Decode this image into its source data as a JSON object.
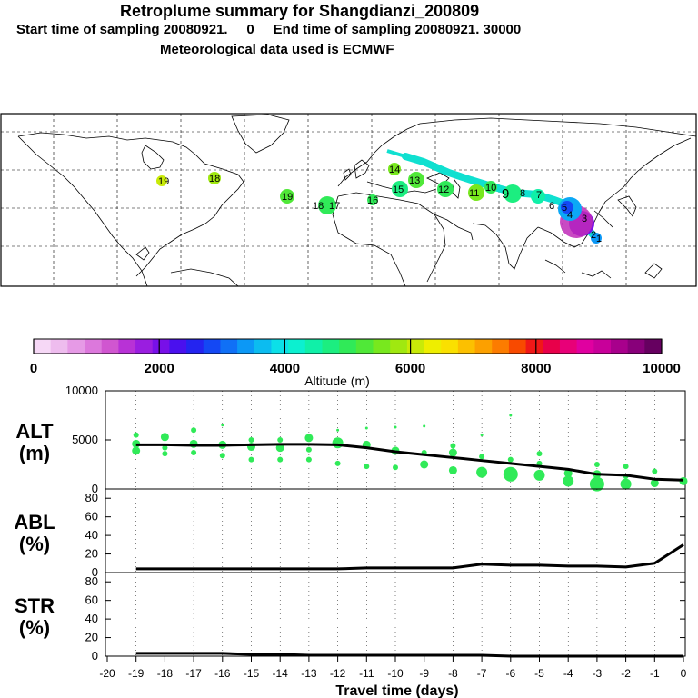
{
  "header": {
    "title": "Retroplume summary for Shangdianzi_200809",
    "subtitle": "Start time of sampling 20080921.     0     End time of sampling 20080921. 30000",
    "meteo": "Meteorological data used is ECMWF"
  },
  "map": {
    "labels": [
      "19",
      "18",
      "19",
      "18",
      "17",
      "16",
      "15",
      "14",
      "13",
      "12",
      "11",
      "10",
      "9",
      "8",
      "7",
      "6",
      "5",
      "4",
      "3",
      "2",
      "1"
    ]
  },
  "colorbar": {
    "ticks": [
      "0",
      "2000",
      "4000",
      "6000",
      "8000",
      "10000"
    ],
    "label": "Altitude  (m)",
    "colors": [
      "#f6d8f6",
      "#eebcee",
      "#e69ae6",
      "#dc78dc",
      "#d056d0",
      "#b832d6",
      "#9a1ee0",
      "#7810e8",
      "#4a10ee",
      "#2424f0",
      "#1448f4",
      "#1070f6",
      "#0c98f6",
      "#0cbcf0",
      "#0ce0e8",
      "#0cf0d0",
      "#10f0a8",
      "#1cee80",
      "#30ea58",
      "#50e838",
      "#78e81e",
      "#a0e810",
      "#c8ea08",
      "#eeee00",
      "#fae000",
      "#fcc000",
      "#fca000",
      "#fc7c00",
      "#f84a00",
      "#f01818",
      "#e8004a",
      "#e80078",
      "#e000a0",
      "#c8009a",
      "#a8008c",
      "#88007a",
      "#660060"
    ]
  },
  "axes": {
    "xlabel": "Travel time (days)",
    "xticks": [
      "-20",
      "-19",
      "-18",
      "-17",
      "-16",
      "-15",
      "-14",
      "-13",
      "-12",
      "-11",
      "-10",
      "-9",
      "-8",
      "-7",
      "-6",
      "-5",
      "-4",
      "-3",
      "-2",
      "-1",
      "0"
    ]
  },
  "chart_data": [
    {
      "type": "line",
      "panel": "ALT",
      "title": "ALT",
      "ylabel": "(m)",
      "ylim": [
        0,
        10000
      ],
      "yticks": [
        "0",
        "5000",
        "10000"
      ],
      "x": [
        -19,
        -18,
        -17,
        -16,
        -15,
        -14,
        -13,
        -12,
        -11,
        -10,
        -9,
        -8,
        -7,
        -6,
        -5,
        -4,
        -3,
        -2,
        -1,
        0
      ],
      "series": [
        {
          "name": "mean altitude",
          "values": [
            4500,
            4500,
            4450,
            4450,
            4500,
            4550,
            4550,
            4500,
            4200,
            3800,
            3500,
            3200,
            2900,
            2600,
            2300,
            2000,
            1500,
            1400,
            1000,
            900
          ]
        }
      ],
      "clusters": [
        {
          "x": -19,
          "y": 5500,
          "s": 1
        },
        {
          "x": -19,
          "y": 4600,
          "s": 2
        },
        {
          "x": -19,
          "y": 3900,
          "s": 2
        },
        {
          "x": -18,
          "y": 5300,
          "s": 2
        },
        {
          "x": -18,
          "y": 4200,
          "s": 1
        },
        {
          "x": -18,
          "y": 3600,
          "s": 1
        },
        {
          "x": -17,
          "y": 6000,
          "s": 1
        },
        {
          "x": -17,
          "y": 4600,
          "s": 2
        },
        {
          "x": -17,
          "y": 3700,
          "s": 1
        },
        {
          "x": -16,
          "y": 6500,
          "s": 0
        },
        {
          "x": -16,
          "y": 4500,
          "s": 2
        },
        {
          "x": -16,
          "y": 3400,
          "s": 1
        },
        {
          "x": -15,
          "y": 5000,
          "s": 1
        },
        {
          "x": -15,
          "y": 4300,
          "s": 2
        },
        {
          "x": -15,
          "y": 3000,
          "s": 1
        },
        {
          "x": -14,
          "y": 5000,
          "s": 1
        },
        {
          "x": -14,
          "y": 4200,
          "s": 2
        },
        {
          "x": -14,
          "y": 3000,
          "s": 1
        },
        {
          "x": -13,
          "y": 5200,
          "s": 2
        },
        {
          "x": -13,
          "y": 4000,
          "s": 1
        },
        {
          "x": -13,
          "y": 3000,
          "s": 1
        },
        {
          "x": -12,
          "y": 6000,
          "s": 0
        },
        {
          "x": -12,
          "y": 4700,
          "s": 3
        },
        {
          "x": -12,
          "y": 2600,
          "s": 1
        },
        {
          "x": -11,
          "y": 6200,
          "s": 0
        },
        {
          "x": -11,
          "y": 4500,
          "s": 2
        },
        {
          "x": -11,
          "y": 2300,
          "s": 1
        },
        {
          "x": -10,
          "y": 6300,
          "s": 0
        },
        {
          "x": -10,
          "y": 3900,
          "s": 2
        },
        {
          "x": -10,
          "y": 2200,
          "s": 1
        },
        {
          "x": -9,
          "y": 6400,
          "s": 0
        },
        {
          "x": -9,
          "y": 3700,
          "s": 1
        },
        {
          "x": -9,
          "y": 2500,
          "s": 2
        },
        {
          "x": -8,
          "y": 4400,
          "s": 1
        },
        {
          "x": -8,
          "y": 3700,
          "s": 2
        },
        {
          "x": -8,
          "y": 1900,
          "s": 2
        },
        {
          "x": -7,
          "y": 5500,
          "s": 0
        },
        {
          "x": -7,
          "y": 3300,
          "s": 1
        },
        {
          "x": -7,
          "y": 1700,
          "s": 3
        },
        {
          "x": -6,
          "y": 7500,
          "s": 0
        },
        {
          "x": -6,
          "y": 3000,
          "s": 1
        },
        {
          "x": -6,
          "y": 1500,
          "s": 4
        },
        {
          "x": -5,
          "y": 3600,
          "s": 1
        },
        {
          "x": -5,
          "y": 2600,
          "s": 1
        },
        {
          "x": -5,
          "y": 1400,
          "s": 3
        },
        {
          "x": -4,
          "y": 1600,
          "s": 2
        },
        {
          "x": -4,
          "y": 800,
          "s": 3
        },
        {
          "x": -3,
          "y": 2500,
          "s": 1
        },
        {
          "x": -3,
          "y": 1500,
          "s": 2
        },
        {
          "x": -3,
          "y": 500,
          "s": 4
        },
        {
          "x": -2,
          "y": 2300,
          "s": 1
        },
        {
          "x": -2,
          "y": 1300,
          "s": 1
        },
        {
          "x": -2,
          "y": 500,
          "s": 3
        },
        {
          "x": -1,
          "y": 1800,
          "s": 1
        },
        {
          "x": -1,
          "y": 600,
          "s": 2
        },
        {
          "x": 0,
          "y": 800,
          "s": 2
        }
      ]
    },
    {
      "type": "line",
      "panel": "ABL",
      "title": "ABL",
      "ylabel": "(%)",
      "ylim": [
        0,
        90
      ],
      "yticks": [
        "0",
        "20",
        "40",
        "60",
        "80"
      ],
      "x": [
        -19,
        -18,
        -17,
        -16,
        -15,
        -14,
        -13,
        -12,
        -11,
        -10,
        -9,
        -8,
        -7,
        -6,
        -5,
        -4,
        -3,
        -2,
        -1,
        0
      ],
      "series": [
        {
          "name": "ABL fraction",
          "values": [
            4,
            4,
            4,
            4,
            4,
            4,
            4,
            4,
            5,
            5,
            5,
            5,
            9,
            8,
            8,
            7,
            7,
            6,
            10,
            30
          ]
        }
      ]
    },
    {
      "type": "line",
      "panel": "STR",
      "title": "STR",
      "ylabel": "(%)",
      "ylim": [
        0,
        90
      ],
      "yticks": [
        "0",
        "20",
        "40",
        "60",
        "80"
      ],
      "x": [
        -19,
        -18,
        -17,
        -16,
        -15,
        -14,
        -13,
        -12,
        -11,
        -10,
        -9,
        -8,
        -7,
        -6,
        -5,
        -4,
        -3,
        -2,
        -1,
        0
      ],
      "series": [
        {
          "name": "STR fraction",
          "values": [
            3,
            3,
            3,
            3,
            2,
            2,
            1,
            1,
            1,
            1,
            1,
            1,
            1,
            0,
            0,
            0,
            0,
            0,
            0,
            0
          ]
        }
      ]
    }
  ]
}
